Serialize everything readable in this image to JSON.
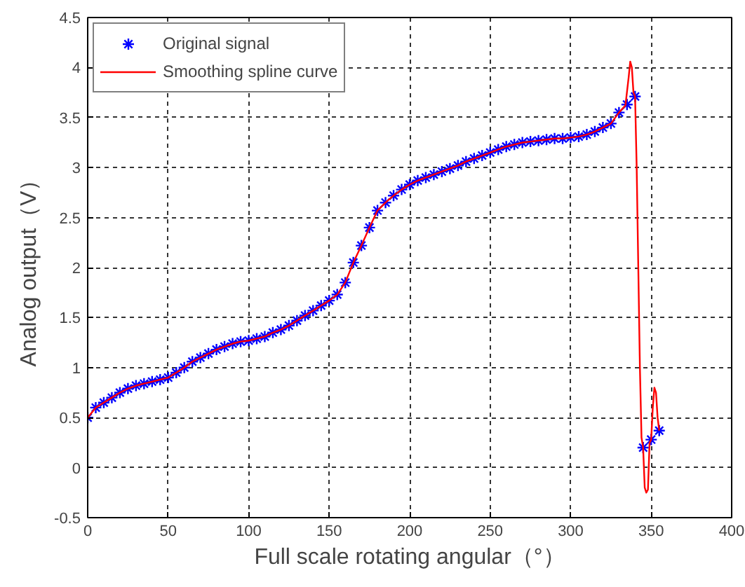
{
  "chart_data": {
    "type": "line",
    "xlabel": "Full scale rotating angular（°）",
    "ylabel": "Analog output（V）",
    "xlim": [
      0,
      400
    ],
    "xticks": [
      0,
      50,
      100,
      150,
      200,
      250,
      300,
      350,
      400
    ],
    "ylim": [
      -0.5,
      4.5
    ],
    "yticks": [
      -0.5,
      0,
      0.5,
      1,
      1.5,
      2,
      2.5,
      3,
      3.5,
      4,
      4.5
    ],
    "grid": true,
    "legend": "top left",
    "series": [
      {
        "name": "Original signal",
        "type": "scatter",
        "marker": "cross",
        "color": "#0000ff",
        "x": [
          0,
          5,
          10,
          15,
          20,
          25,
          30,
          35,
          40,
          45,
          50,
          55,
          60,
          65,
          70,
          75,
          80,
          85,
          90,
          95,
          100,
          105,
          110,
          115,
          120,
          125,
          130,
          135,
          140,
          145,
          150,
          155,
          160,
          165,
          170,
          175,
          180,
          185,
          190,
          195,
          200,
          205,
          210,
          215,
          220,
          225,
          230,
          235,
          240,
          245,
          250,
          255,
          260,
          265,
          270,
          275,
          280,
          285,
          290,
          295,
          300,
          305,
          310,
          315,
          320,
          325,
          330,
          335,
          340,
          345,
          350,
          355
        ],
        "values": [
          0.5,
          0.6,
          0.65,
          0.7,
          0.75,
          0.79,
          0.82,
          0.84,
          0.86,
          0.88,
          0.9,
          0.95,
          1.0,
          1.06,
          1.1,
          1.14,
          1.18,
          1.21,
          1.24,
          1.26,
          1.27,
          1.29,
          1.31,
          1.35,
          1.38,
          1.42,
          1.47,
          1.52,
          1.57,
          1.62,
          1.67,
          1.73,
          1.85,
          2.05,
          2.22,
          2.4,
          2.57,
          2.65,
          2.72,
          2.78,
          2.83,
          2.87,
          2.9,
          2.93,
          2.96,
          2.99,
          3.02,
          3.06,
          3.09,
          3.12,
          3.15,
          3.18,
          3.21,
          3.23,
          3.25,
          3.26,
          3.27,
          3.28,
          3.29,
          3.29,
          3.3,
          3.31,
          3.33,
          3.36,
          3.4,
          3.44,
          3.55,
          3.63,
          3.71,
          0.2,
          0.28,
          0.37
        ]
      },
      {
        "name": "Smoothing spline curve",
        "marker": "none",
        "line_style": "solid",
        "color": "#ff0000",
        "x": [
          0,
          5,
          10,
          15,
          20,
          25,
          30,
          35,
          40,
          45,
          50,
          55,
          60,
          65,
          70,
          75,
          80,
          85,
          90,
          95,
          100,
          105,
          110,
          115,
          120,
          125,
          130,
          135,
          140,
          145,
          150,
          155,
          160,
          165,
          170,
          175,
          180,
          185,
          190,
          195,
          200,
          205,
          210,
          215,
          220,
          225,
          230,
          235,
          240,
          245,
          250,
          255,
          260,
          265,
          270,
          275,
          280,
          285,
          290,
          295,
          300,
          305,
          310,
          315,
          320,
          325,
          330,
          334,
          336,
          337,
          338,
          339,
          340,
          341,
          342,
          343,
          344,
          345,
          346,
          347,
          348,
          349,
          350,
          351,
          352,
          353,
          354,
          355
        ],
        "values": [
          0.5,
          0.6,
          0.65,
          0.7,
          0.75,
          0.79,
          0.82,
          0.84,
          0.86,
          0.88,
          0.9,
          0.95,
          1.0,
          1.06,
          1.1,
          1.14,
          1.18,
          1.21,
          1.24,
          1.26,
          1.27,
          1.29,
          1.31,
          1.35,
          1.38,
          1.42,
          1.47,
          1.52,
          1.57,
          1.62,
          1.67,
          1.73,
          1.85,
          2.05,
          2.22,
          2.4,
          2.57,
          2.65,
          2.72,
          2.78,
          2.83,
          2.87,
          2.9,
          2.93,
          2.96,
          2.99,
          3.02,
          3.06,
          3.09,
          3.12,
          3.15,
          3.18,
          3.21,
          3.23,
          3.25,
          3.26,
          3.27,
          3.28,
          3.29,
          3.29,
          3.3,
          3.31,
          3.33,
          3.36,
          3.4,
          3.44,
          3.55,
          3.62,
          3.9,
          4.06,
          4.0,
          3.75,
          3.71,
          3.0,
          2.0,
          1.0,
          0.3,
          0.2,
          -0.2,
          -0.25,
          -0.22,
          0.25,
          0.28,
          0.6,
          0.8,
          0.75,
          0.5,
          0.37
        ]
      }
    ]
  }
}
